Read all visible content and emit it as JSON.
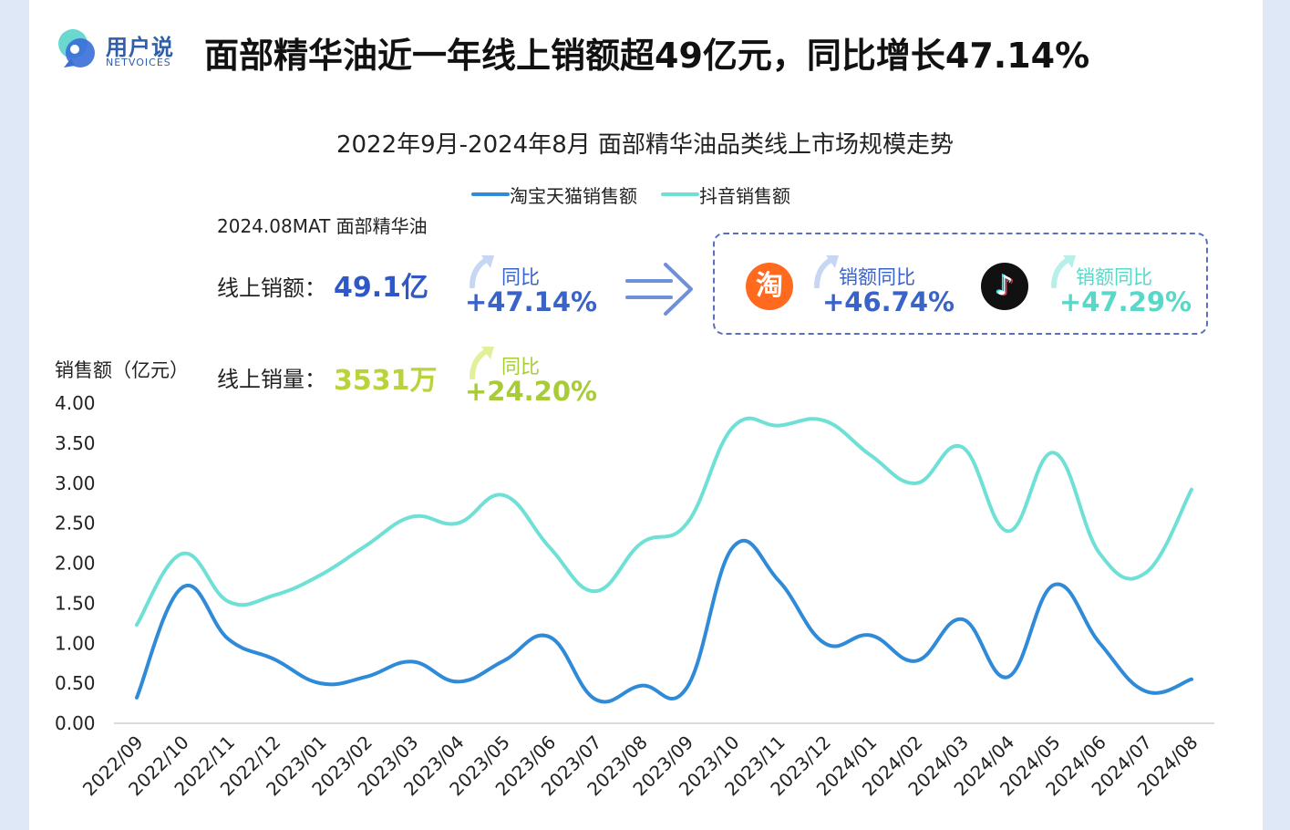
{
  "brand": {
    "name_cn": "用户说",
    "name_en": "NETVOICES"
  },
  "headline": "面部精华油近一年线上销额超49亿元，同比增长47.14%",
  "summary": {
    "period_label": "2024.08MAT 面部精华油",
    "sales_label": "线上销额：",
    "sales_value": "49.1亿",
    "sales_yoy_label": "同比",
    "sales_yoy_value": "+47.14%",
    "volume_label": "线上销量：",
    "volume_value": "3531万",
    "volume_yoy_label": "同比",
    "volume_yoy_value": "+24.20%"
  },
  "platforms": [
    {
      "name": "taobao",
      "icon_text": "淘",
      "label": "销额同比",
      "value": "+46.74%"
    },
    {
      "name": "douyin",
      "icon_text": "♪",
      "label": "销额同比",
      "value": "+47.29%"
    }
  ],
  "colors": {
    "taobao_line": "#2f8ad8",
    "douyin_line": "#6fe0d6",
    "sales_value": "#2e57c8",
    "volume_value": "#b8d43a",
    "yoy_blue": "#3a63c8",
    "yoy_green": "#a8cc35",
    "yoy_teal": "#59d8c9",
    "taobao_icon": "#ff6a1f"
  },
  "chart_data": {
    "type": "line",
    "title": "2022年9月-2024年8月 面部精华油品类线上市场规模走势",
    "ylabel": "销售额（亿元）",
    "ylim": [
      0,
      4
    ],
    "yticks": [
      "0.00",
      "0.50",
      "1.00",
      "1.50",
      "2.00",
      "2.50",
      "3.00",
      "3.50",
      "4.00"
    ],
    "categories": [
      "2022/09",
      "2022/10",
      "2022/11",
      "2022/12",
      "2023/01",
      "2023/02",
      "2023/03",
      "2023/04",
      "2023/05",
      "2023/06",
      "2023/07",
      "2023/08",
      "2023/09",
      "2023/10",
      "2023/11",
      "2023/12",
      "2024/01",
      "2024/02",
      "2024/03",
      "2024/04",
      "2024/05",
      "2024/06",
      "2024/07",
      "2024/08"
    ],
    "series": [
      {
        "name": "淘宝天猫销售额",
        "values": [
          0.32,
          1.7,
          1.05,
          0.8,
          0.5,
          0.58,
          0.77,
          0.52,
          0.78,
          1.08,
          0.3,
          0.47,
          0.45,
          2.2,
          1.78,
          1.0,
          1.1,
          0.78,
          1.3,
          0.58,
          1.73,
          1.0,
          0.4,
          0.55
        ]
      },
      {
        "name": "抖音销售额",
        "values": [
          1.23,
          2.12,
          1.52,
          1.6,
          1.85,
          2.22,
          2.58,
          2.5,
          2.85,
          2.2,
          1.65,
          2.25,
          2.5,
          3.7,
          3.72,
          3.78,
          3.35,
          3.0,
          3.45,
          2.4,
          3.38,
          2.12,
          1.88,
          2.92
        ]
      }
    ],
    "legend": "top"
  }
}
